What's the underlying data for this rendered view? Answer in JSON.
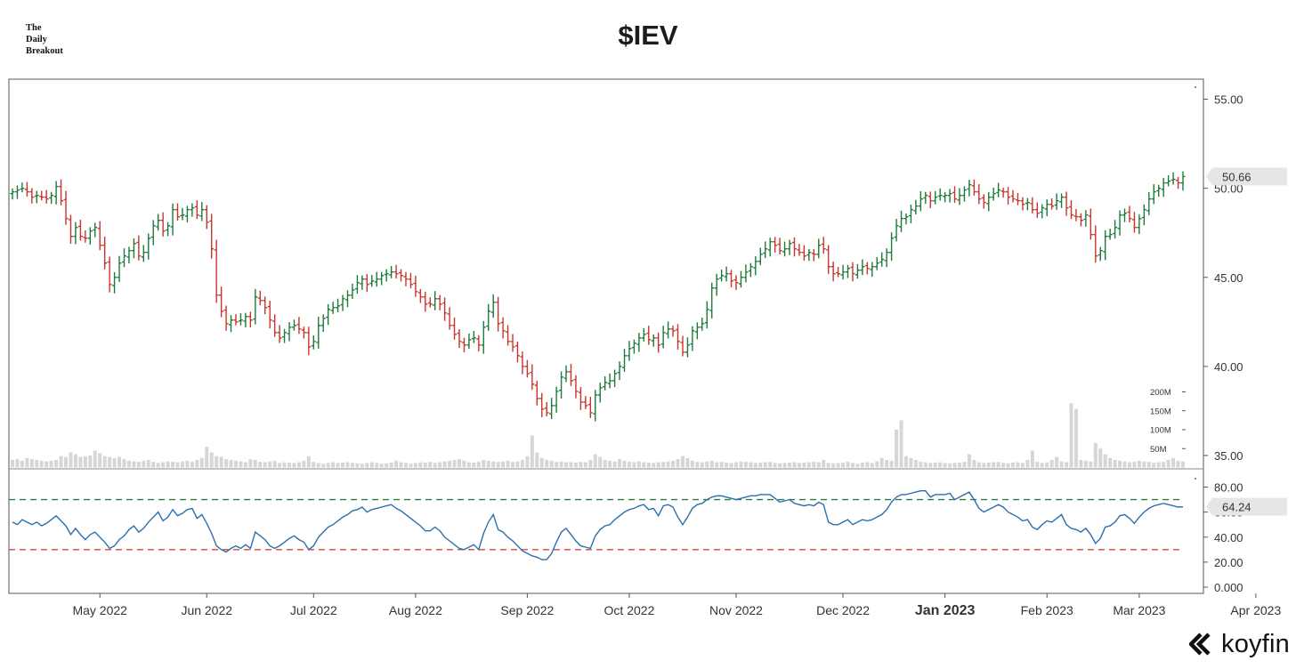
{
  "brand": {
    "line1": "The",
    "line2": "Daily",
    "line3": "Breakout"
  },
  "chart_data": {
    "title": "$IEV",
    "type": "ohlc",
    "price_axis": {
      "ticks": [
        {
          "value": 35,
          "label": "35.00"
        },
        {
          "value": 40,
          "label": "40.00"
        },
        {
          "value": 45,
          "label": "45.00"
        },
        {
          "value": 50,
          "label": "50.00"
        },
        {
          "value": 55,
          "label": "55.00"
        }
      ],
      "ylim": [
        34.6,
        55.9
      ],
      "last_price_label": "50.66",
      "last_price": 50.66
    },
    "volume_axis": {
      "ticks": [
        {
          "value": 50,
          "label": "50M"
        },
        {
          "value": 100,
          "label": "100M"
        },
        {
          "value": 150,
          "label": "150M"
        },
        {
          "value": 200,
          "label": "200M"
        }
      ],
      "unit": "M"
    },
    "rsi_axis": {
      "ticks": [
        {
          "value": 0,
          "label": "0.000"
        },
        {
          "value": 20,
          "label": "20.00"
        },
        {
          "value": 40,
          "label": "40.00"
        },
        {
          "value": 60,
          "label": "60.00"
        },
        {
          "value": 80,
          "label": "80.00"
        }
      ],
      "ylim": [
        -2,
        86
      ],
      "last_value_label": "64.24",
      "last_value": 64.24,
      "upper_level": 70,
      "lower_level": 30
    },
    "x_axis": {
      "ticks": [
        {
          "i": 18,
          "label": "May 2022"
        },
        {
          "i": 40,
          "label": "Jun 2022"
        },
        {
          "i": 62,
          "label": "Jul 2022"
        },
        {
          "i": 83,
          "label": "Aug 2022"
        },
        {
          "i": 106,
          "label": "Sep 2022"
        },
        {
          "i": 127,
          "label": "Oct 2022"
        },
        {
          "i": 149,
          "label": "Nov 2022"
        },
        {
          "i": 171,
          "label": "Dec 2022"
        },
        {
          "i": 192,
          "label": "Jan 2023",
          "bold": true
        },
        {
          "i": 213,
          "label": "Feb 2023"
        },
        {
          "i": 232,
          "label": "Mar 2023"
        },
        {
          "i": 256,
          "label": "Apr 2023"
        }
      ]
    },
    "series": [
      {
        "name": "Price",
        "closes": [
          49.8,
          49.9,
          50.0,
          49.8,
          49.5,
          49.6,
          49.5,
          49.4,
          49.6,
          50.1,
          49.3,
          48.3,
          47.3,
          47.8,
          47.3,
          47.2,
          47.6,
          47.8,
          46.8,
          45.8,
          44.6,
          45.0,
          45.8,
          46.2,
          46.5,
          46.9,
          46.2,
          46.4,
          47.2,
          47.9,
          48.2,
          47.6,
          47.9,
          48.8,
          48.4,
          48.5,
          48.8,
          48.9,
          48.5,
          48.8,
          48.1,
          46.6,
          44.0,
          43.1,
          42.4,
          42.6,
          42.5,
          42.6,
          42.8,
          42.6,
          43.9,
          43.7,
          43.3,
          42.6,
          41.9,
          41.6,
          41.9,
          42.2,
          42.3,
          42.1,
          41.9,
          41.1,
          41.4,
          42.3,
          42.7,
          43.2,
          43.3,
          43.4,
          43.8,
          44.0,
          44.3,
          44.7,
          44.9,
          44.6,
          44.8,
          44.9,
          45.1,
          45.2,
          45.3,
          45.2,
          45.1,
          44.9,
          44.6,
          44.2,
          43.9,
          43.5,
          43.5,
          43.8,
          43.5,
          43.0,
          42.3,
          41.8,
          41.4,
          41.2,
          41.5,
          41.6,
          41.2,
          42.2,
          43.1,
          43.6,
          42.4,
          42.0,
          41.4,
          41.1,
          40.6,
          40.0,
          39.6,
          39.0,
          38.2,
          37.6,
          37.4,
          37.8,
          38.6,
          39.4,
          39.7,
          39.2,
          38.6,
          38.0,
          37.8,
          37.4,
          38.4,
          38.8,
          39.1,
          39.2,
          39.6,
          40.0,
          40.6,
          41.0,
          41.3,
          41.6,
          41.8,
          41.5,
          41.6,
          41.2,
          41.9,
          42.1,
          42.0,
          41.4,
          40.8,
          41.2,
          42.0,
          42.2,
          42.4,
          43.2,
          44.4,
          44.9,
          45.1,
          45.2,
          44.8,
          44.7,
          45.0,
          45.3,
          45.6,
          45.9,
          46.3,
          46.6,
          47.0,
          46.8,
          46.5,
          46.6,
          46.9,
          46.6,
          46.4,
          46.2,
          46.4,
          46.3,
          46.8,
          46.6,
          45.6,
          45.2,
          45.2,
          45.3,
          45.5,
          45.2,
          45.4,
          45.6,
          45.5,
          45.6,
          45.8,
          46.0,
          46.4,
          47.2,
          47.9,
          48.3,
          48.4,
          48.8,
          49.0,
          49.4,
          49.6,
          49.3,
          49.5,
          49.6,
          49.6,
          49.7,
          49.4,
          49.6,
          49.9,
          50.2,
          49.8,
          49.4,
          49.2,
          49.5,
          49.7,
          49.9,
          49.8,
          49.5,
          49.4,
          49.3,
          49.1,
          49.2,
          48.8,
          48.6,
          48.9,
          49.1,
          49.0,
          49.3,
          49.5,
          48.9,
          48.5,
          48.4,
          48.2,
          48.5,
          47.4,
          46.2,
          46.5,
          47.3,
          47.4,
          47.8,
          48.5,
          48.6,
          48.3,
          47.8,
          48.3,
          48.8,
          49.4,
          49.8,
          50.0,
          50.3,
          50.4,
          50.5,
          50.3,
          50.66
        ]
      },
      {
        "name": "RSI",
        "values": [
          52,
          50,
          54,
          52,
          50,
          52,
          49,
          51,
          54,
          57,
          53,
          49,
          42,
          47,
          42,
          38,
          42,
          44,
          40,
          36,
          31,
          33,
          38,
          41,
          46,
          49,
          44,
          47,
          52,
          56,
          60,
          53,
          56,
          62,
          57,
          59,
          62,
          63,
          55,
          58,
          51,
          43,
          33,
          30,
          28,
          31,
          33,
          31,
          34,
          31,
          44,
          41,
          38,
          33,
          31,
          33,
          36,
          39,
          41,
          38,
          36,
          30,
          33,
          40,
          44,
          48,
          50,
          53,
          56,
          58,
          61,
          62,
          64,
          60,
          62,
          63,
          64,
          65,
          66,
          63,
          61,
          58,
          55,
          52,
          49,
          45,
          45,
          48,
          45,
          40,
          37,
          34,
          31,
          30,
          32,
          34,
          30,
          43,
          52,
          58,
          46,
          44,
          40,
          37,
          33,
          29,
          27,
          25,
          24,
          22,
          22,
          27,
          36,
          44,
          47,
          42,
          37,
          33,
          32,
          31,
          41,
          46,
          49,
          50,
          54,
          57,
          60,
          62,
          63,
          65,
          66,
          62,
          63,
          57,
          65,
          66,
          64,
          56,
          50,
          56,
          63,
          66,
          67,
          70,
          72,
          73,
          73,
          72,
          71,
          70,
          71,
          72,
          73,
          73,
          74,
          74,
          74,
          71,
          68,
          69,
          70,
          67,
          66,
          65,
          66,
          65,
          68,
          66,
          52,
          50,
          50,
          52,
          54,
          50,
          52,
          54,
          53,
          54,
          56,
          58,
          62,
          68,
          72,
          74,
          74,
          75,
          76,
          77,
          77,
          72,
          74,
          74,
          74,
          75,
          70,
          72,
          74,
          76,
          70,
          63,
          60,
          62,
          64,
          66,
          64,
          60,
          58,
          56,
          53,
          54,
          48,
          46,
          50,
          53,
          52,
          55,
          58,
          50,
          47,
          46,
          44,
          47,
          42,
          35,
          39,
          48,
          49,
          52,
          57,
          58,
          55,
          51,
          56,
          60,
          63,
          65,
          66,
          67,
          66,
          65,
          64,
          64.24
        ]
      },
      {
        "name": "Volume",
        "values": [
          20,
          22,
          18,
          25,
          22,
          20,
          18,
          16,
          18,
          20,
          30,
          28,
          40,
          35,
          28,
          30,
          32,
          45,
          38,
          30,
          28,
          25,
          28,
          22,
          18,
          16,
          15,
          18,
          20,
          15,
          12,
          14,
          16,
          15,
          14,
          16,
          18,
          15,
          20,
          25,
          55,
          40,
          30,
          28,
          22,
          20,
          18,
          16,
          14,
          22,
          20,
          15,
          14,
          16,
          18,
          12,
          14,
          13,
          12,
          14,
          18,
          30,
          15,
          12,
          10,
          12,
          14,
          12,
          13,
          14,
          12,
          11,
          10,
          12,
          14,
          12,
          10,
          11,
          13,
          18,
          14,
          12,
          10,
          12,
          14,
          13,
          15,
          12,
          14,
          16,
          18,
          20,
          22,
          18,
          14,
          13,
          15,
          20,
          18,
          16,
          15,
          16,
          18,
          15,
          16,
          20,
          30,
          85,
          40,
          25,
          20,
          18,
          15,
          16,
          14,
          14,
          13,
          15,
          14,
          20,
          35,
          28,
          20,
          18,
          16,
          22,
          18,
          15,
          14,
          16,
          14,
          13,
          12,
          14,
          15,
          16,
          18,
          22,
          30,
          25,
          18,
          15,
          14,
          16,
          18,
          14,
          15,
          13,
          12,
          14,
          16,
          15,
          14,
          12,
          13,
          14,
          15,
          12,
          11,
          12,
          13,
          14,
          12,
          13,
          14,
          15,
          14,
          20,
          12,
          11,
          12,
          13,
          15,
          12,
          10,
          13,
          14,
          12,
          16,
          25,
          20,
          18,
          100,
          125,
          30,
          25,
          20,
          15,
          14,
          12,
          13,
          14,
          12,
          11,
          12,
          13,
          15,
          35,
          20,
          14,
          12,
          13,
          14,
          15,
          12,
          11,
          13,
          14,
          12,
          20,
          45,
          15,
          12,
          14,
          20,
          28,
          16,
          14,
          170,
          155,
          20,
          18,
          16,
          65,
          50,
          35,
          25,
          20,
          18,
          16,
          14,
          15,
          18,
          16,
          15,
          12,
          14,
          15,
          20,
          25,
          18,
          16
        ]
      }
    ]
  }
}
